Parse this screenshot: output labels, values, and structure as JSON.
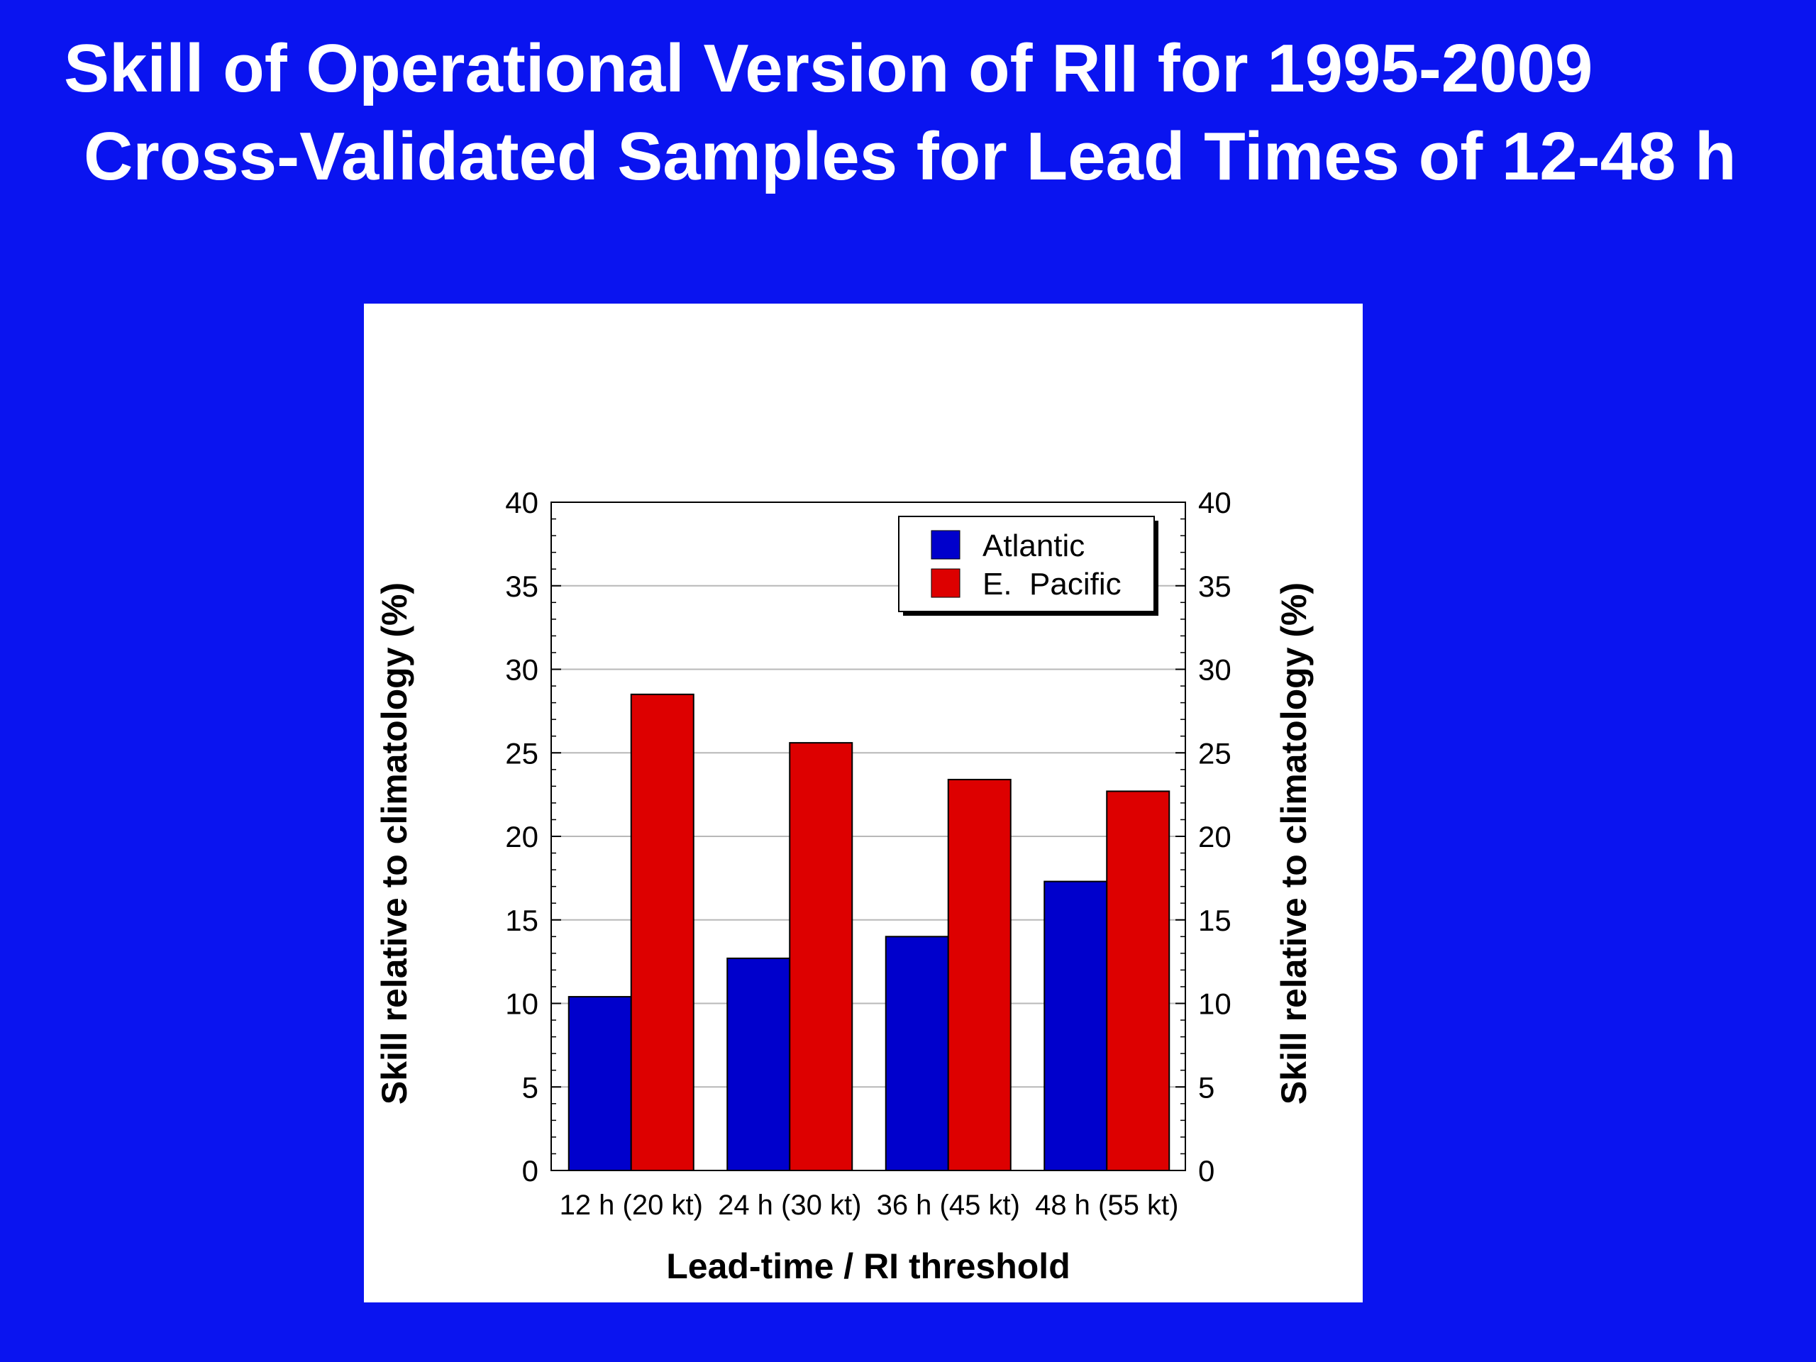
{
  "slide": {
    "title_line_1": "Skill of Operational Version of RII for 1995-2009",
    "title_line_2": "Cross-Validated Samples for Lead Times of 12-48 h",
    "background_color": "#0a14f0"
  },
  "chart_data": {
    "type": "bar",
    "categories": [
      "12 h (20 kt)",
      "24 h (30 kt)",
      "36 h (45 kt)",
      "48 h (55 kt)"
    ],
    "series": [
      {
        "name": "Atlantic",
        "values": [
          10.4,
          12.7,
          14.0,
          17.3
        ],
        "color": "#0000cc"
      },
      {
        "name": "E.  Pacific",
        "values": [
          28.5,
          25.6,
          23.4,
          22.7
        ],
        "color": "#dd0000"
      }
    ],
    "xlabel": "Lead-time  / RI threshold",
    "ylabel": "Skill relative to climatology (%)",
    "ylabel_right": "Skill relative to climatology (%)",
    "ylim": [
      0,
      40
    ],
    "yticks": [
      0,
      5,
      10,
      15,
      20,
      25,
      30,
      35,
      40
    ],
    "grid": true,
    "legend_position": "top-right"
  }
}
